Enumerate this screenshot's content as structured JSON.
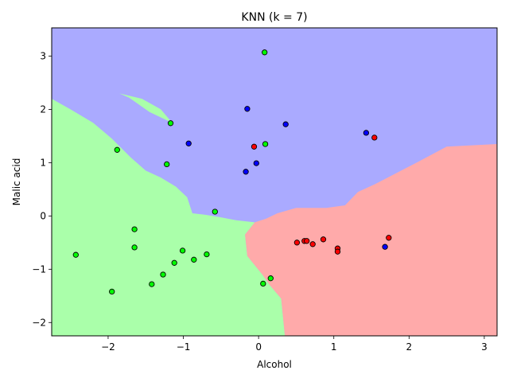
{
  "chart_data": {
    "type": "scatter",
    "title": "KNN (k = 7)",
    "xlabel": "Alcohol",
    "ylabel": "Malic acid",
    "xlim": [
      -2.75,
      3.17
    ],
    "ylim": [
      -2.25,
      3.53
    ],
    "xticks": [
      -2,
      -1,
      0,
      1,
      2,
      3
    ],
    "yticks": [
      -2,
      -1,
      0,
      1,
      2,
      3
    ],
    "xtick_labels": [
      "−2",
      "−1",
      "0",
      "1",
      "2",
      "3"
    ],
    "ytick_labels": [
      "−2",
      "−1",
      "0",
      "1",
      "2",
      "3"
    ],
    "grid": false,
    "legend": "none",
    "background_regions": {
      "description_colors": {
        "blue": "#aaaaff",
        "green": "#aaffaa",
        "red": "#ffaaaa"
      },
      "green_region_outline": [
        [
          -2.75,
          2.2
        ],
        [
          -2.5,
          2.0
        ],
        [
          -2.2,
          1.75
        ],
        [
          -1.95,
          1.45
        ],
        [
          -1.7,
          1.1
        ],
        [
          -1.5,
          0.85
        ],
        [
          -1.3,
          0.72
        ],
        [
          -1.1,
          0.55
        ],
        [
          -0.95,
          0.35
        ],
        [
          -0.88,
          0.05
        ],
        [
          -0.7,
          0.02
        ],
        [
          -0.52,
          -0.02
        ],
        [
          -0.3,
          -0.08
        ],
        [
          -0.05,
          -0.12
        ],
        [
          -0.18,
          -0.35
        ],
        [
          -0.15,
          -0.75
        ],
        [
          0.05,
          -1.1
        ],
        [
          0.15,
          -1.3
        ],
        [
          0.3,
          -1.55
        ],
        [
          0.35,
          -2.25
        ],
        [
          -2.75,
          -2.25
        ]
      ],
      "red_region_outline": [
        [
          3.17,
          1.35
        ],
        [
          2.5,
          1.3
        ],
        [
          2.1,
          1.0
        ],
        [
          1.55,
          0.6
        ],
        [
          1.32,
          0.45
        ],
        [
          1.15,
          0.2
        ],
        [
          0.9,
          0.15
        ],
        [
          0.5,
          0.15
        ],
        [
          0.25,
          0.05
        ],
        [
          0.1,
          -0.05
        ],
        [
          -0.05,
          -0.12
        ],
        [
          -0.18,
          -0.35
        ],
        [
          -0.15,
          -0.75
        ],
        [
          0.05,
          -1.1
        ],
        [
          0.15,
          -1.3
        ],
        [
          0.3,
          -1.55
        ],
        [
          0.35,
          -2.25
        ],
        [
          3.17,
          -2.25
        ]
      ],
      "green_sliver_outline": [
        [
          -1.85,
          2.3
        ],
        [
          -1.55,
          2.2
        ],
        [
          -1.3,
          2.0
        ],
        [
          -1.15,
          1.75
        ],
        [
          -1.45,
          1.95
        ],
        [
          -1.72,
          2.22
        ]
      ]
    },
    "series": [
      {
        "color": "#0000ff",
        "points": [
          [
            -0.15,
            2.01
          ],
          [
            0.36,
            1.72
          ],
          [
            -0.93,
            1.36
          ],
          [
            1.43,
            1.56
          ],
          [
            -0.03,
            0.99
          ],
          [
            -0.17,
            0.83
          ],
          [
            1.68,
            -0.58
          ]
        ]
      },
      {
        "color": "#00ff00",
        "points": [
          [
            0.08,
            3.07
          ],
          [
            -1.17,
            1.74
          ],
          [
            -1.88,
            1.24
          ],
          [
            0.09,
            1.35
          ],
          [
            -1.22,
            0.97
          ],
          [
            -0.58,
            0.08
          ],
          [
            -1.65,
            -0.25
          ],
          [
            -1.65,
            -0.59
          ],
          [
            -2.43,
            -0.73
          ],
          [
            -1.01,
            -0.65
          ],
          [
            -0.69,
            -0.72
          ],
          [
            -1.12,
            -0.88
          ],
          [
            -0.86,
            -0.82
          ],
          [
            -1.27,
            -1.1
          ],
          [
            -1.42,
            -1.28
          ],
          [
            0.06,
            -1.27
          ],
          [
            0.16,
            -1.17
          ],
          [
            -1.95,
            -1.42
          ]
        ]
      },
      {
        "color": "#ff0000",
        "points": [
          [
            -0.06,
            1.3
          ],
          [
            1.54,
            1.47
          ],
          [
            0.51,
            -0.5
          ],
          [
            0.61,
            -0.47
          ],
          [
            0.64,
            -0.47
          ],
          [
            0.72,
            -0.53
          ],
          [
            0.86,
            -0.44
          ],
          [
            1.05,
            -0.61
          ],
          [
            1.05,
            -0.67
          ],
          [
            1.73,
            -0.41
          ]
        ]
      }
    ]
  }
}
